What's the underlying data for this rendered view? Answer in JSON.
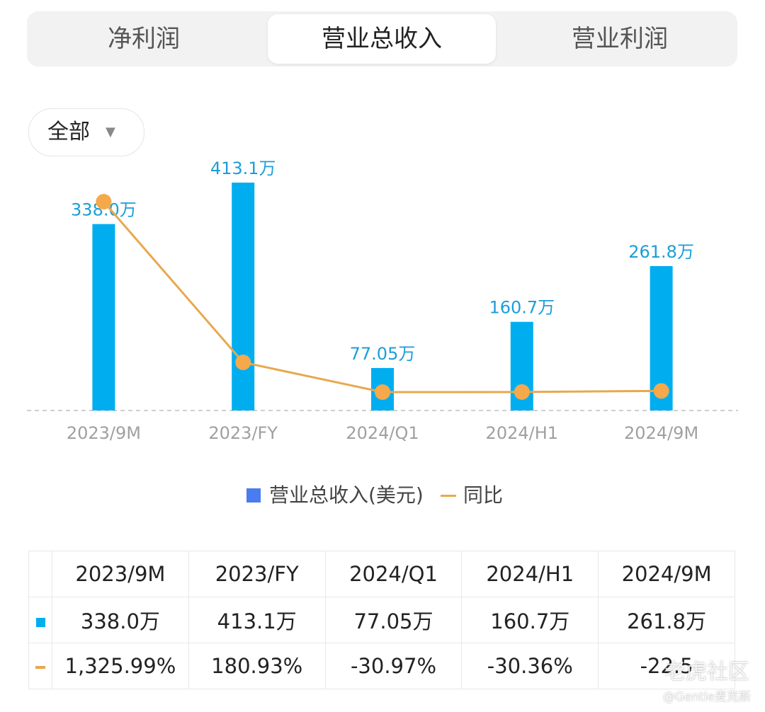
{
  "tabs": [
    {
      "label": "净利润",
      "active": false
    },
    {
      "label": "营业总收入",
      "active": true
    },
    {
      "label": "营业利润",
      "active": false
    }
  ],
  "filter": {
    "label": "全部"
  },
  "legend": {
    "bar_label": "营业总收入(美元)",
    "line_label": "同比"
  },
  "colors": {
    "bar": "#00aef0",
    "line": "#e8a84f",
    "legend_bar": "#4a7bf0",
    "negative": "#2faa6a",
    "positive": "#d5544d"
  },
  "chart_data": {
    "type": "bar",
    "categories": [
      "2023/9M",
      "2023/FY",
      "2024/Q1",
      "2024/H1",
      "2024/9M"
    ],
    "series": [
      {
        "name": "营业总收入(美元)",
        "type": "bar",
        "values": [
          3380000,
          4131000,
          770500,
          1607000,
          2618000
        ],
        "labels": [
          "338.0万",
          "413.1万",
          "77.05万",
          "160.7万",
          "261.8万"
        ]
      },
      {
        "name": "同比",
        "type": "line",
        "values": [
          1325.99,
          180.93,
          -30.97,
          -30.36,
          -22.5
        ]
      }
    ]
  },
  "table": {
    "headers": [
      "2023/9M",
      "2023/FY",
      "2024/Q1",
      "2024/H1",
      "2024/9M"
    ],
    "rows": [
      {
        "marker": "bar",
        "cells": [
          "338.0万",
          "413.1万",
          "77.05万",
          "160.7万",
          "261.8万"
        ]
      },
      {
        "marker": "line",
        "cells": [
          "1,325.99%",
          "180.93%",
          "-30.97%",
          "-30.36%",
          "-22.5"
        ]
      }
    ]
  },
  "watermark": {
    "brand": "老虎社区",
    "author": "@Gentle麦克斯"
  }
}
